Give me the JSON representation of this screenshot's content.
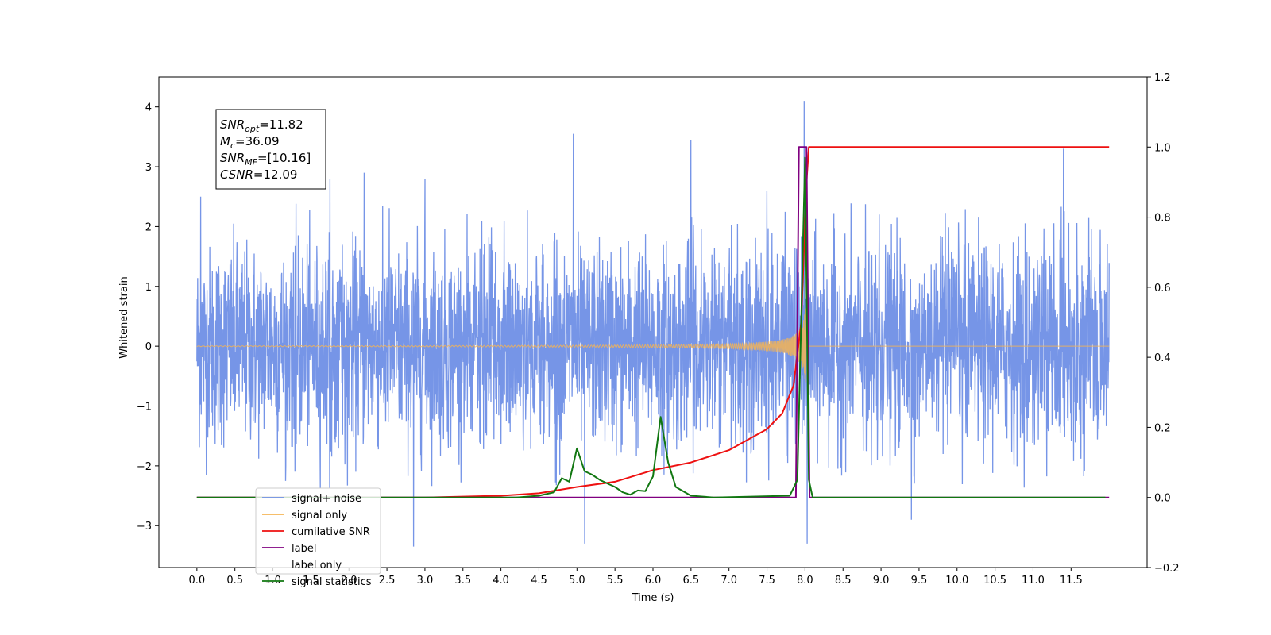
{
  "chart_data": {
    "type": "line",
    "xlabel": "Time (s)",
    "ylabel_left": "Whitened strain",
    "ylabel_right": "",
    "xlim": [
      -0.5,
      12.5
    ],
    "ylim_left": [
      -3.7,
      4.5
    ],
    "ylim_right": [
      -0.2,
      1.2
    ],
    "x_ticks": [
      0.0,
      0.5,
      1.0,
      1.5,
      2.0,
      2.5,
      3.0,
      3.5,
      4.0,
      4.5,
      5.0,
      5.5,
      6.0,
      6.5,
      7.0,
      7.5,
      8.0,
      8.5,
      9.0,
      9.5,
      10.0,
      10.5,
      11.0,
      11.5
    ],
    "x_tick_labels": [
      "0.0",
      "0.5",
      "1.0",
      "1.5",
      "2.0",
      "2.5",
      "3.0",
      "3.5",
      "4.0",
      "4.5",
      "5.0",
      "5.5",
      "6.0",
      "6.5",
      "7.0",
      "7.5",
      "8.0",
      "8.5",
      "9.0",
      "9.5",
      "10.0",
      "10.5",
      "11.0",
      "11.5"
    ],
    "y_left_ticks": [
      -3,
      -2,
      -1,
      0,
      1,
      2,
      3,
      4
    ],
    "y_left_tick_labels": [
      "−3",
      "−2",
      "−1",
      "0",
      "1",
      "2",
      "3",
      "4"
    ],
    "y_right_ticks": [
      -0.2,
      0.0,
      0.2,
      0.4,
      0.6,
      0.8,
      1.0,
      1.2
    ],
    "y_right_tick_labels": [
      "−0.2",
      "0.0",
      "0.2",
      "0.4",
      "0.6",
      "0.8",
      "1.0",
      "1.2"
    ],
    "grid": false,
    "legend_placement": "lower-left",
    "series": [
      {
        "name": "signal+ noise",
        "axis": "left",
        "color": "#6f8fe6",
        "description_of_values": "gaussian whitened noise, std ~0.85, x 0 to 12",
        "spikes": [
          [
            0.05,
            2.5
          ],
          [
            1.75,
            2.8
          ],
          [
            2.2,
            2.9
          ],
          [
            2.85,
            -3.35
          ],
          [
            3.0,
            2.8
          ],
          [
            4.95,
            3.55
          ],
          [
            5.1,
            -3.3
          ],
          [
            6.5,
            3.45
          ],
          [
            7.5,
            2.6
          ],
          [
            7.99,
            4.1
          ],
          [
            8.03,
            -3.3
          ],
          [
            11.4,
            3.3
          ],
          [
            9.4,
            -2.9
          ]
        ]
      },
      {
        "name": "signal only",
        "axis": "left",
        "color": "#f5b455",
        "chirp": {
          "start": 0.0,
          "merger": 8.02,
          "end": 12.0,
          "peak_amplitude": 0.5
        }
      },
      {
        "name": "cumilative SNR",
        "axis": "right",
        "color": "#ee1111",
        "x": [
          0.0,
          3.0,
          4.0,
          4.5,
          5.0,
          5.5,
          6.0,
          6.5,
          7.0,
          7.5,
          7.7,
          7.85,
          7.95,
          8.02,
          8.05,
          12.0
        ],
        "values": [
          0.0,
          0.0,
          0.005,
          0.012,
          0.03,
          0.045,
          0.078,
          0.1,
          0.135,
          0.195,
          0.24,
          0.32,
          0.5,
          0.9,
          1.0,
          1.0
        ]
      },
      {
        "name": "label",
        "axis": "right",
        "color": "#800080",
        "x": [
          0.0,
          7.88,
          7.92,
          8.02,
          8.06,
          12.0
        ],
        "values": [
          0.0,
          0.0,
          1.0,
          1.0,
          0.0,
          0.0
        ]
      },
      {
        "name": "label only",
        "axis": "right",
        "color": "#bbbbbb",
        "legend_only": true
      },
      {
        "name": "signal statistics",
        "axis": "right",
        "color": "#117711",
        "x": [
          0.0,
          4.2,
          4.5,
          4.7,
          4.8,
          4.9,
          5.0,
          5.1,
          5.2,
          5.3,
          5.4,
          5.5,
          5.6,
          5.7,
          5.8,
          5.9,
          6.0,
          6.1,
          6.2,
          6.3,
          6.5,
          6.8,
          7.8,
          7.9,
          8.0,
          8.05,
          8.1,
          11.95
        ],
        "values": [
          0.0,
          0.0,
          0.005,
          0.015,
          0.055,
          0.045,
          0.14,
          0.075,
          0.065,
          0.05,
          0.04,
          0.03,
          0.015,
          0.008,
          0.02,
          0.018,
          0.06,
          0.23,
          0.1,
          0.03,
          0.005,
          0.0,
          0.005,
          0.05,
          0.97,
          0.05,
          0.0,
          0.0
        ]
      }
    ]
  },
  "info_box": {
    "lines": [
      {
        "var": "SNR",
        "sub": "opt",
        "value": "=11.82"
      },
      {
        "var": "M",
        "sub": "c",
        "value": "=36.09"
      },
      {
        "var": "SNR",
        "sub": "MF",
        "value": "=[10.16]"
      },
      {
        "var": "CSNR",
        "sub": "",
        "value": "=12.09"
      }
    ]
  }
}
